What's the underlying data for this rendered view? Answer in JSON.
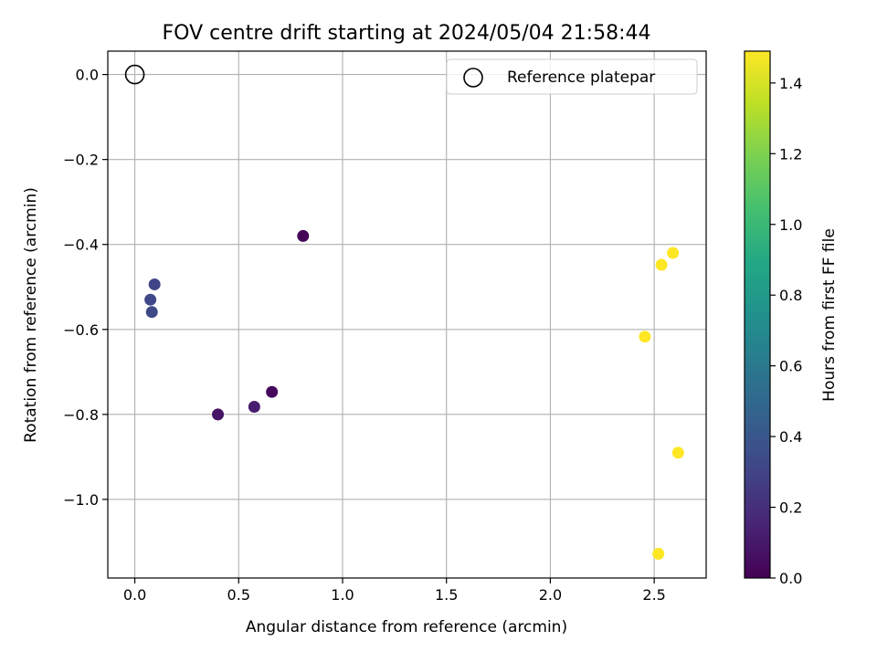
{
  "chart_data": {
    "type": "scatter",
    "title": "FOV centre drift starting at 2024/05/04 21:58:44",
    "xlabel": "Angular distance from reference (arcmin)",
    "ylabel": "Rotation from reference (arcmin)",
    "xlim": [
      -0.13,
      2.75
    ],
    "ylim": [
      -1.185,
      0.055
    ],
    "xticks": [
      0.0,
      0.5,
      1.0,
      1.5,
      2.0,
      2.5
    ],
    "xtick_labels": [
      "0.0",
      "0.5",
      "1.0",
      "1.5",
      "2.0",
      "2.5"
    ],
    "yticks": [
      0.0,
      -0.2,
      -0.4,
      -0.6,
      -0.8,
      -1.0
    ],
    "ytick_labels": [
      "0.0",
      "−0.2",
      "−0.4",
      "−0.6",
      "−0.8",
      "−1.0"
    ],
    "grid": true,
    "legend": {
      "position": "upper-right",
      "entries": [
        "Reference platepar"
      ]
    },
    "reference_point": {
      "x": 0.0,
      "y": 0.0,
      "marker": "open-circle"
    },
    "points": [
      {
        "x": 0.81,
        "y": -0.38,
        "hours": 0.02
      },
      {
        "x": 0.66,
        "y": -0.747,
        "hours": 0.03
      },
      {
        "x": 0.4,
        "y": -0.8,
        "hours": 0.08
      },
      {
        "x": 0.575,
        "y": -0.782,
        "hours": 0.12
      },
      {
        "x": 0.095,
        "y": -0.494,
        "hours": 0.3
      },
      {
        "x": 0.075,
        "y": -0.53,
        "hours": 0.32
      },
      {
        "x": 0.082,
        "y": -0.559,
        "hours": 0.33
      },
      {
        "x": 2.535,
        "y": -0.448,
        "hours": 1.49
      },
      {
        "x": 2.59,
        "y": -0.42,
        "hours": 1.49
      },
      {
        "x": 2.455,
        "y": -0.617,
        "hours": 1.49
      },
      {
        "x": 2.615,
        "y": -0.89,
        "hours": 1.49
      },
      {
        "x": 2.52,
        "y": -1.128,
        "hours": 1.49
      }
    ],
    "colorbar": {
      "label": "Hours from first FF file",
      "colormap": "viridis",
      "range": [
        0.0,
        1.49
      ],
      "ticks": [
        0.0,
        0.2,
        0.4,
        0.6,
        0.8,
        1.0,
        1.2,
        1.4
      ],
      "tick_labels": [
        "0.0",
        "0.2",
        "0.4",
        "0.6",
        "0.8",
        "1.0",
        "1.2",
        "1.4"
      ]
    }
  }
}
